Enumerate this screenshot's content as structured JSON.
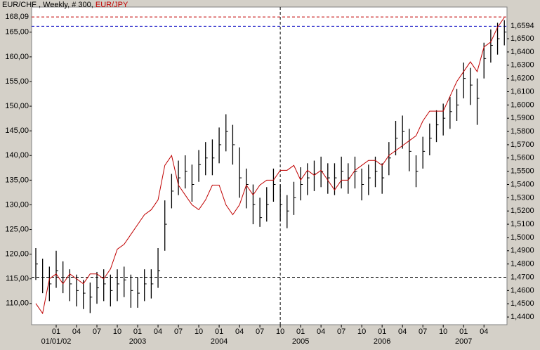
{
  "chart_data": {
    "type": "ohlc",
    "title": "EUR/CHF , Weekly, # 300,",
    "categories": [
      null,
      null,
      null,
      "01",
      null,
      null,
      "04",
      null,
      null,
      "07",
      null,
      null,
      "10",
      null,
      null,
      "01",
      null,
      null,
      "04",
      null,
      null,
      "07",
      null,
      null,
      "10",
      null,
      null,
      "01",
      null,
      null,
      "04",
      null,
      null,
      "07",
      null,
      null,
      "10",
      null,
      null,
      "01",
      null,
      null,
      "04",
      null,
      null,
      "07",
      null,
      null,
      "10",
      null,
      null,
      "01",
      null,
      null,
      "04",
      null,
      null,
      "07",
      null,
      null,
      "10",
      null,
      null,
      "01",
      null,
      null,
      "04",
      null,
      null,
      null
    ],
    "categories2": [
      null,
      null,
      null,
      "01/01/02",
      null,
      null,
      null,
      null,
      null,
      null,
      null,
      null,
      null,
      null,
      null,
      "2003",
      null,
      null,
      null,
      null,
      null,
      null,
      null,
      null,
      null,
      null,
      null,
      "2004",
      null,
      null,
      null,
      null,
      null,
      null,
      null,
      null,
      null,
      null,
      null,
      "2005",
      null,
      null,
      null,
      null,
      null,
      null,
      null,
      null,
      null,
      null,
      null,
      "2006",
      null,
      null,
      null,
      null,
      null,
      null,
      null,
      null,
      null,
      null,
      null,
      "2007",
      null,
      null,
      null,
      null,
      null,
      null
    ],
    "series": [
      {
        "name": "EUR/JPY",
        "type": "line",
        "axis": "y",
        "color": "#c00000",
        "values": [
          110,
          108,
          115,
          116,
          114,
          116,
          115,
          114,
          116,
          116,
          115,
          117,
          121,
          122,
          124,
          126,
          128,
          129,
          131,
          138,
          140,
          134,
          132,
          130,
          129,
          131,
          134,
          134,
          130,
          128,
          130,
          134,
          132,
          134,
          135,
          135,
          137,
          137,
          138,
          135,
          137,
          136,
          137,
          135,
          133,
          135,
          135,
          137,
          138,
          139,
          139,
          138,
          140,
          141,
          142,
          143,
          144,
          147,
          149,
          149,
          149,
          152,
          155,
          157,
          159,
          157,
          162,
          163,
          166,
          168
        ]
      },
      {
        "type": "ohlc",
        "axis": "y2",
        "color": "#000000",
        "high": [
          1.492,
          1.484,
          1.478,
          1.49,
          1.482,
          1.476,
          1.472,
          1.468,
          1.466,
          1.474,
          1.476,
          1.472,
          1.476,
          1.478,
          1.472,
          1.47,
          1.476,
          1.476,
          1.492,
          1.528,
          1.548,
          1.558,
          1.562,
          1.555,
          1.566,
          1.572,
          1.574,
          1.583,
          1.593,
          1.585,
          1.568,
          1.552,
          1.54,
          1.53,
          1.538,
          1.552,
          1.54,
          1.532,
          1.542,
          1.553,
          1.556,
          1.558,
          1.561,
          1.556,
          1.556,
          1.561,
          1.556,
          1.561,
          1.552,
          1.555,
          1.561,
          1.556,
          1.572,
          1.588,
          1.592,
          1.582,
          1.562,
          1.576,
          1.586,
          1.596,
          1.601,
          1.606,
          1.612,
          1.632,
          1.628,
          1.62,
          1.647,
          1.657,
          1.662,
          1.664
        ],
        "low": [
          1.468,
          1.458,
          1.452,
          1.462,
          1.458,
          1.452,
          1.448,
          1.446,
          1.443,
          1.45,
          1.452,
          1.448,
          1.452,
          1.455,
          1.447,
          1.447,
          1.452,
          1.454,
          1.462,
          1.49,
          1.522,
          1.532,
          1.537,
          1.527,
          1.542,
          1.547,
          1.547,
          1.556,
          1.565,
          1.555,
          1.53,
          1.522,
          1.51,
          1.508,
          1.512,
          1.527,
          1.512,
          1.507,
          1.517,
          1.528,
          1.532,
          1.535,
          1.538,
          1.533,
          1.532,
          1.537,
          1.533,
          1.537,
          1.528,
          1.532,
          1.538,
          1.533,
          1.547,
          1.562,
          1.567,
          1.55,
          1.538,
          1.552,
          1.562,
          1.572,
          1.577,
          1.582,
          1.588,
          1.605,
          1.6,
          1.585,
          1.62,
          1.632,
          1.638,
          1.645
        ],
        "close": [
          1.48,
          1.47,
          1.465,
          1.475,
          1.47,
          1.465,
          1.46,
          1.458,
          1.455,
          1.462,
          1.465,
          1.46,
          1.465,
          1.468,
          1.46,
          1.458,
          1.465,
          1.465,
          1.475,
          1.51,
          1.535,
          1.545,
          1.55,
          1.54,
          1.555,
          1.56,
          1.56,
          1.57,
          1.58,
          1.57,
          1.545,
          1.54,
          1.525,
          1.515,
          1.525,
          1.54,
          1.525,
          1.52,
          1.53,
          1.54,
          1.545,
          1.548,
          1.55,
          1.545,
          1.545,
          1.55,
          1.545,
          1.55,
          1.54,
          1.545,
          1.55,
          1.545,
          1.56,
          1.575,
          1.58,
          1.565,
          1.55,
          1.565,
          1.575,
          1.585,
          1.59,
          1.595,
          1.6,
          1.62,
          1.615,
          1.605,
          1.635,
          1.645,
          1.65,
          1.655
        ]
      }
    ],
    "ylim": [
      105.7,
      170.1
    ],
    "yticks": [
      {
        "value": 110,
        "label": "110,00"
      },
      {
        "value": 115,
        "label": "115,00"
      },
      {
        "value": 120,
        "label": "120,00"
      },
      {
        "value": 125,
        "label": "125,00"
      },
      {
        "value": 130,
        "label": "130,00"
      },
      {
        "value": 135,
        "label": "135,00"
      },
      {
        "value": 140,
        "label": "140,00"
      },
      {
        "value": 145,
        "label": "145,00"
      },
      {
        "value": 150,
        "label": "150,00"
      },
      {
        "value": 155,
        "label": "155,00"
      },
      {
        "value": 160,
        "label": "160,00"
      },
      {
        "value": 165,
        "label": "165,00"
      }
    ],
    "y2lim": [
      1.4342,
      1.6739
    ],
    "y2ticks": [
      {
        "value": 1.44,
        "label": "1,4400"
      },
      {
        "value": 1.45,
        "label": "1,4500"
      },
      {
        "value": 1.46,
        "label": "1,4600"
      },
      {
        "value": 1.48,
        "label": "1,4800"
      },
      {
        "value": 1.49,
        "label": "1,4900"
      },
      {
        "value": 1.5,
        "label": "1,5000"
      },
      {
        "value": 1.51,
        "label": "1,5100"
      },
      {
        "value": 1.52,
        "label": "1,5200"
      },
      {
        "value": 1.53,
        "label": "1,5300"
      },
      {
        "value": 1.54,
        "label": "1,5400"
      },
      {
        "value": 1.55,
        "label": "1,5500"
      },
      {
        "value": 1.56,
        "label": "1,5600"
      },
      {
        "value": 1.57,
        "label": "1,5700"
      },
      {
        "value": 1.58,
        "label": "1,5800"
      },
      {
        "value": 1.59,
        "label": "1,5900"
      },
      {
        "value": 1.6,
        "label": "1,6000"
      },
      {
        "value": 1.61,
        "label": "1,6100"
      },
      {
        "value": 1.62,
        "label": "1,6200"
      },
      {
        "value": 1.63,
        "label": "1,6300"
      },
      {
        "value": 1.64,
        "label": "1,6400"
      },
      {
        "value": 1.65,
        "label": "1,6500"
      }
    ],
    "markers": [
      {
        "axis": "y",
        "value": 168.09,
        "label": "168,09",
        "color": "#c00000"
      },
      {
        "axis": "y2",
        "value": 1.6594,
        "label": "1,6594",
        "color": "#0000c0"
      },
      {
        "axis": "y2",
        "value": 1.47,
        "label": "1,4700",
        "color": "#0000c0",
        "line_color": "#000000"
      }
    ],
    "crosshair_index": 36
  }
}
